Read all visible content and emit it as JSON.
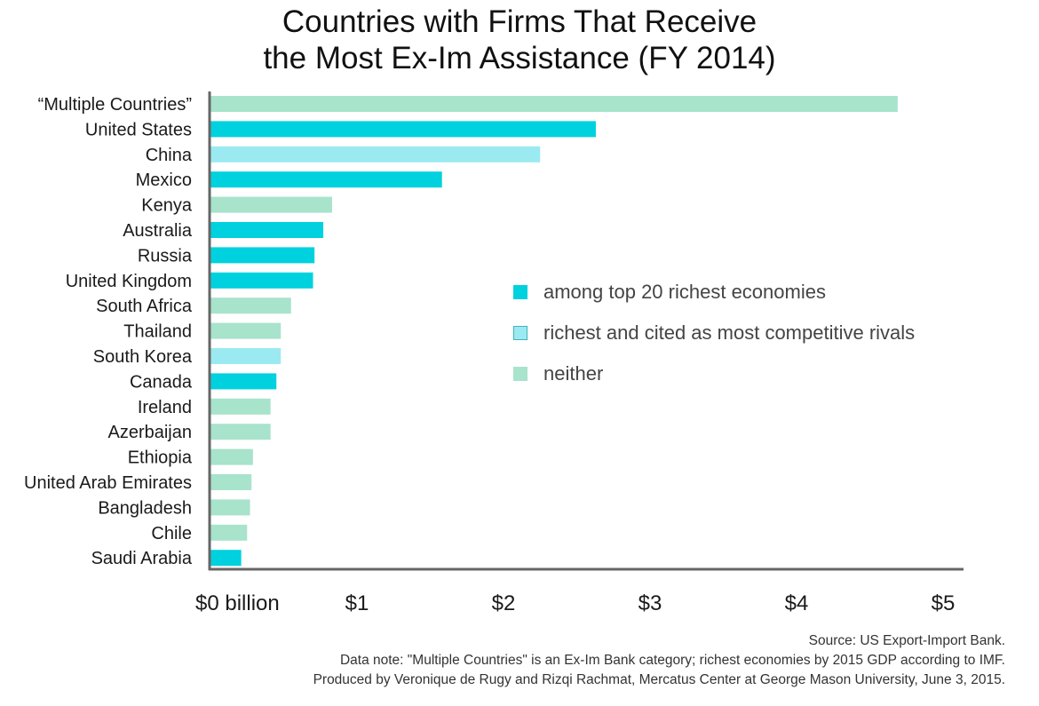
{
  "title_lines": [
    "Countries with Firms That Receive",
    "the Most Ex-Im Assistance (FY 2014)"
  ],
  "colors": {
    "top20": "#00d1de",
    "rivals": "#9beaf1",
    "neither": "#a8e3cc",
    "axis": "#666666"
  },
  "legend": {
    "items": [
      {
        "label": "among top 20 richest economies",
        "key": "top20"
      },
      {
        "label": "richest and cited as most competitive rivals",
        "key": "rivals"
      },
      {
        "label": "neither",
        "key": "neither"
      }
    ]
  },
  "chart_data": {
    "type": "bar",
    "orientation": "horizontal",
    "title": "Countries with Firms That Receive the Most Ex-Im Assistance (FY 2014)",
    "xlabel": "",
    "ylabel": "",
    "xlim": [
      0,
      5
    ],
    "xticks": [
      0,
      1,
      2,
      3,
      4,
      5
    ],
    "xtick_labels": [
      "$0 billion",
      "$1",
      "$2",
      "$3",
      "$4",
      "$5"
    ],
    "categories": [
      "“Multiple Countries”",
      "United States",
      "China",
      "Mexico",
      "Kenya",
      "Australia",
      "Russia",
      "United Kingdom",
      "South Africa",
      "Thailand",
      "South Korea",
      "Canada",
      "Ireland",
      "Azerbaijan",
      "Ethiopia",
      "United Arab Emirates",
      "Bangladesh",
      "Chile",
      "Saudi Arabia"
    ],
    "values": [
      4.69,
      2.63,
      2.25,
      1.58,
      0.83,
      0.77,
      0.71,
      0.7,
      0.55,
      0.48,
      0.48,
      0.45,
      0.41,
      0.41,
      0.29,
      0.28,
      0.27,
      0.25,
      0.21
    ],
    "groups": [
      "neither",
      "top20",
      "rivals",
      "top20",
      "neither",
      "top20",
      "top20",
      "top20",
      "neither",
      "neither",
      "rivals",
      "top20",
      "neither",
      "neither",
      "neither",
      "neither",
      "neither",
      "neither",
      "top20"
    ],
    "grid": false,
    "legend_position": "center-right"
  },
  "footnotes": [
    "Source: US Export-Import Bank.",
    "Data note: \"Multiple Countries\" is an Ex-Im Bank category; richest economies by 2015 GDP according to IMF.",
    "Produced by Veronique de Rugy and Rizqi Rachmat, Mercatus Center at George Mason University, June 3, 2015."
  ]
}
